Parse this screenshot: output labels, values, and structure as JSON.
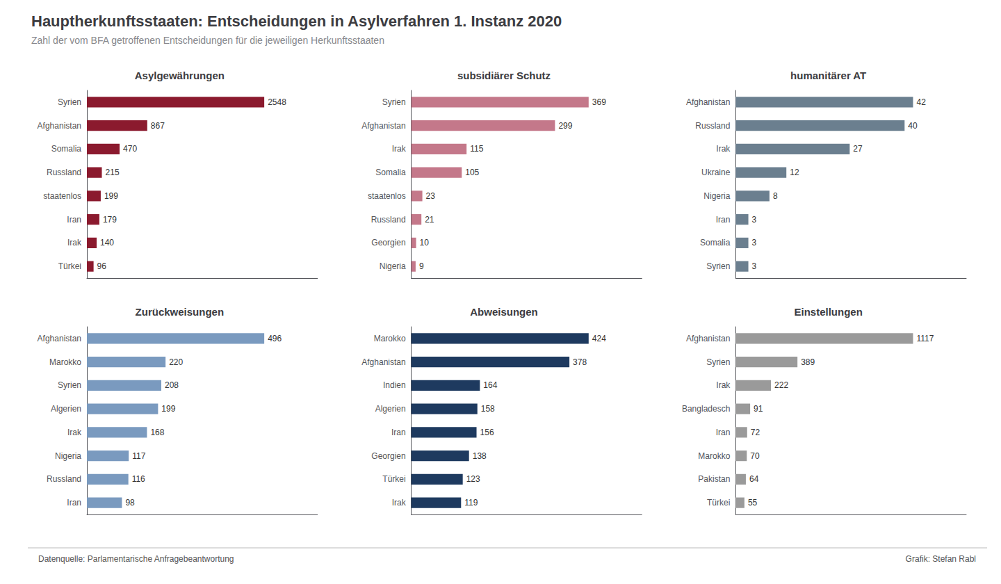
{
  "title": "Hauptherkunftsstaaten: Entscheidungen in Asylverfahren 1. Instanz 2020",
  "subtitle": "Zahl der vom BFA getroffenen Entscheidungen für die jeweiligen Herkunftsstaaten",
  "annotations": [
    "Datenquelle: Parlamentarische Anfragebeantwortung",
    "Grafik: Stefan Rabl"
  ],
  "chart_data": [
    {
      "type": "bar",
      "orientation": "horizontal",
      "title": "Asylgewährungen",
      "color": "#8b1a2e",
      "categories": [
        "Syrien",
        "Afghanistan",
        "Somalia",
        "Russland",
        "staatenlos",
        "Iran",
        "Irak",
        "Türkei"
      ],
      "values": [
        2548,
        867,
        470,
        215,
        199,
        179,
        140,
        96
      ],
      "xlim": [
        0,
        3312.4
      ],
      "data_labels": true,
      "tick_labels": "y",
      "grid": false
    },
    {
      "type": "bar",
      "orientation": "horizontal",
      "title": "subsidiärer Schutz",
      "color": "#c4788a",
      "categories": [
        "Syrien",
        "Afghanistan",
        "Irak",
        "Somalia",
        "staatenlos",
        "Russland",
        "Georgien",
        "Nigeria"
      ],
      "values": [
        369,
        299,
        115,
        105,
        23,
        21,
        10,
        9
      ],
      "xlim": [
        0,
        479.7
      ],
      "data_labels": true,
      "tick_labels": "y",
      "grid": false
    },
    {
      "type": "bar",
      "orientation": "horizontal",
      "title": "humanitärer AT",
      "color": "#6b7f8f",
      "categories": [
        "Afghanistan",
        "Russland",
        "Irak",
        "Ukraine",
        "Nigeria",
        "Iran",
        "Somalia",
        "Syrien"
      ],
      "values": [
        42,
        40,
        27,
        12,
        8,
        3,
        3,
        3
      ],
      "xlim": [
        0,
        54.6
      ],
      "data_labels": true,
      "tick_labels": "y",
      "grid": false
    },
    {
      "type": "bar",
      "orientation": "horizontal",
      "title": "Zurückweisungen",
      "color": "#7a9abf",
      "categories": [
        "Afghanistan",
        "Marokko",
        "Syrien",
        "Algerien",
        "Irak",
        "Nigeria",
        "Russland",
        "Iran"
      ],
      "values": [
        496,
        220,
        208,
        199,
        168,
        117,
        116,
        98
      ],
      "xlim": [
        0,
        644.8
      ],
      "data_labels": true,
      "tick_labels": "y",
      "grid": false
    },
    {
      "type": "bar",
      "orientation": "horizontal",
      "title": "Abweisungen",
      "color": "#1e3a5f",
      "categories": [
        "Marokko",
        "Afghanistan",
        "Indien",
        "Algerien",
        "Iran",
        "Georgien",
        "Türkei",
        "Irak"
      ],
      "values": [
        424,
        378,
        164,
        158,
        156,
        138,
        123,
        119
      ],
      "xlim": [
        0,
        551.2
      ],
      "data_labels": true,
      "tick_labels": "y",
      "grid": false
    },
    {
      "type": "bar",
      "orientation": "horizontal",
      "title": "Einstellungen",
      "color": "#9a9a9a",
      "categories": [
        "Afghanistan",
        "Syrien",
        "Irak",
        "Bangladesch",
        "Iran",
        "Marokko",
        "Pakistan",
        "Türkei"
      ],
      "values": [
        1117,
        389,
        222,
        91,
        72,
        70,
        64,
        55
      ],
      "xlim": [
        0,
        1452.1
      ],
      "data_labels": true,
      "tick_labels": "y",
      "grid": false
    }
  ]
}
